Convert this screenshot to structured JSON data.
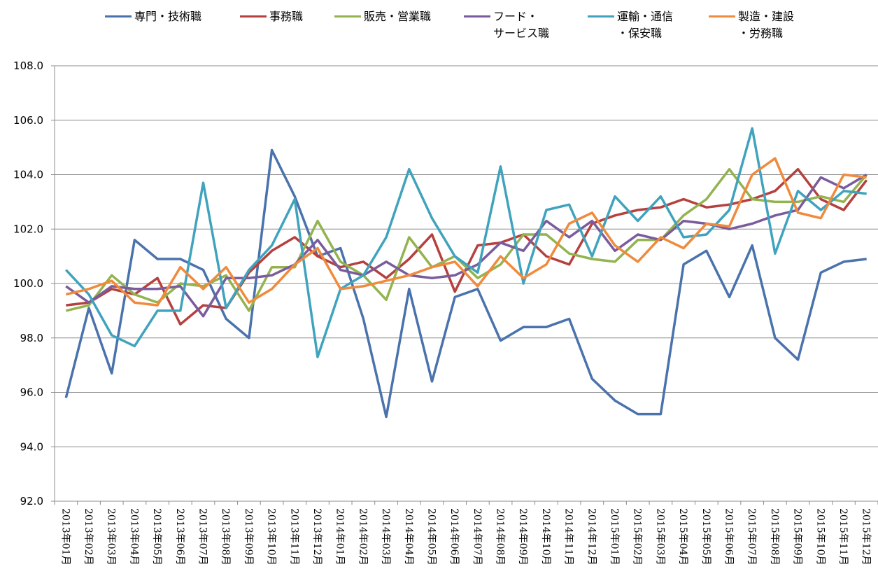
{
  "chart_data": {
    "type": "line",
    "categories": [
      "2013年01月",
      "2013年02月",
      "2013年03月",
      "2013年04月",
      "2013年05月",
      "2013年06月",
      "2013年07月",
      "2013年08月",
      "2013年09月",
      "2013年10月",
      "2013年11月",
      "2013年12月",
      "2014年01月",
      "2014年02月",
      "2014年03月",
      "2014年04月",
      "2014年05月",
      "2014年06月",
      "2014年07月",
      "2014年08月",
      "2014年09月",
      "2014年10月",
      "2014年11月",
      "2014年12月",
      "2015年01月",
      "2015年02月",
      "2015年03月",
      "2015年04月",
      "2015年05月",
      "2015年06月",
      "2015年07月",
      "2015年08月",
      "2015年09月",
      "2015年10月",
      "2015年11月",
      "2015年12月"
    ],
    "series": [
      {
        "name": "専門・技術職",
        "color": "#4a72ac",
        "values": [
          95.8,
          99.1,
          96.7,
          101.6,
          100.9,
          100.9,
          100.5,
          98.7,
          98.0,
          104.9,
          103.2,
          101.0,
          101.3,
          98.7,
          95.1,
          99.8,
          96.4,
          99.5,
          99.8,
          97.9,
          98.4,
          98.4,
          98.7,
          96.5,
          95.7,
          95.2,
          95.2,
          100.7,
          101.2,
          99.5,
          101.4,
          98.0,
          97.2,
          100.4,
          100.8,
          100.9
        ]
      },
      {
        "name": "事務職",
        "color": "#b5413f",
        "values": [
          99.2,
          99.3,
          99.8,
          99.6,
          100.2,
          98.5,
          99.2,
          99.1,
          100.4,
          101.2,
          101.7,
          101.0,
          100.6,
          100.8,
          100.2,
          100.9,
          101.8,
          99.7,
          101.4,
          101.5,
          101.8,
          101.0,
          100.7,
          102.2,
          102.5,
          102.7,
          102.8,
          103.1,
          102.8,
          102.9,
          103.1,
          103.4,
          104.2,
          103.1,
          102.7,
          103.8
        ]
      },
      {
        "name": "販売・営業職",
        "color": "#93b34f",
        "values": [
          99.0,
          99.2,
          100.3,
          99.6,
          99.3,
          100.0,
          99.9,
          100.3,
          99.0,
          100.6,
          100.6,
          102.3,
          100.8,
          100.3,
          99.4,
          101.7,
          100.6,
          101.0,
          100.2,
          100.7,
          101.8,
          101.8,
          101.1,
          100.9,
          100.8,
          101.6,
          101.6,
          102.5,
          103.1,
          104.2,
          103.1,
          103.0,
          103.0,
          103.2,
          103.0,
          104.0
        ]
      },
      {
        "name": "フード・\nサービス職",
        "color": "#7a5c9c",
        "values": [
          99.9,
          99.3,
          99.9,
          99.8,
          99.8,
          99.9,
          98.8,
          100.2,
          100.2,
          100.3,
          100.7,
          101.6,
          100.5,
          100.3,
          100.8,
          100.3,
          100.2,
          100.3,
          100.7,
          101.5,
          101.2,
          102.3,
          101.7,
          102.3,
          101.2,
          101.8,
          101.6,
          102.3,
          102.2,
          102.0,
          102.2,
          102.5,
          102.7,
          103.9,
          103.5,
          104.0
        ]
      },
      {
        "name": "運輸・通信\n・保安職",
        "color": "#40a3bd",
        "values": [
          100.5,
          99.6,
          98.1,
          97.7,
          99.0,
          99.0,
          103.7,
          99.1,
          100.5,
          101.4,
          103.1,
          97.3,
          99.8,
          100.3,
          101.7,
          104.2,
          102.4,
          101.0,
          100.4,
          104.3,
          100.0,
          102.7,
          102.9,
          101.0,
          103.2,
          102.3,
          103.2,
          101.7,
          101.8,
          102.7,
          105.7,
          101.1,
          103.4,
          102.7,
          103.4,
          103.3
        ]
      },
      {
        "name": "製造・建設\n・労務職",
        "color": "#f08a3c",
        "values": [
          99.6,
          99.8,
          100.1,
          99.3,
          99.2,
          100.6,
          99.8,
          100.6,
          99.3,
          99.8,
          100.7,
          101.3,
          99.8,
          99.9,
          100.1,
          100.3,
          100.6,
          100.8,
          99.9,
          101.0,
          100.2,
          100.7,
          102.2,
          102.6,
          101.4,
          100.8,
          101.7,
          101.3,
          102.2,
          102.1,
          104.0,
          104.6,
          102.6,
          102.4,
          104.0,
          103.9
        ]
      }
    ],
    "ylim": [
      92,
      108
    ],
    "yticks": [
      {
        "value": 92,
        "label": "92.0"
      },
      {
        "value": 94,
        "label": "94.0"
      },
      {
        "value": 96,
        "label": "96.0"
      },
      {
        "value": 98,
        "label": "98.0"
      },
      {
        "value": 100,
        "label": "100.0"
      },
      {
        "value": 102,
        "label": "102.0"
      },
      {
        "value": 104,
        "label": "104.0"
      },
      {
        "value": 106,
        "label": "106.0"
      },
      {
        "value": 108,
        "label": "108.0"
      }
    ],
    "grid": true
  }
}
